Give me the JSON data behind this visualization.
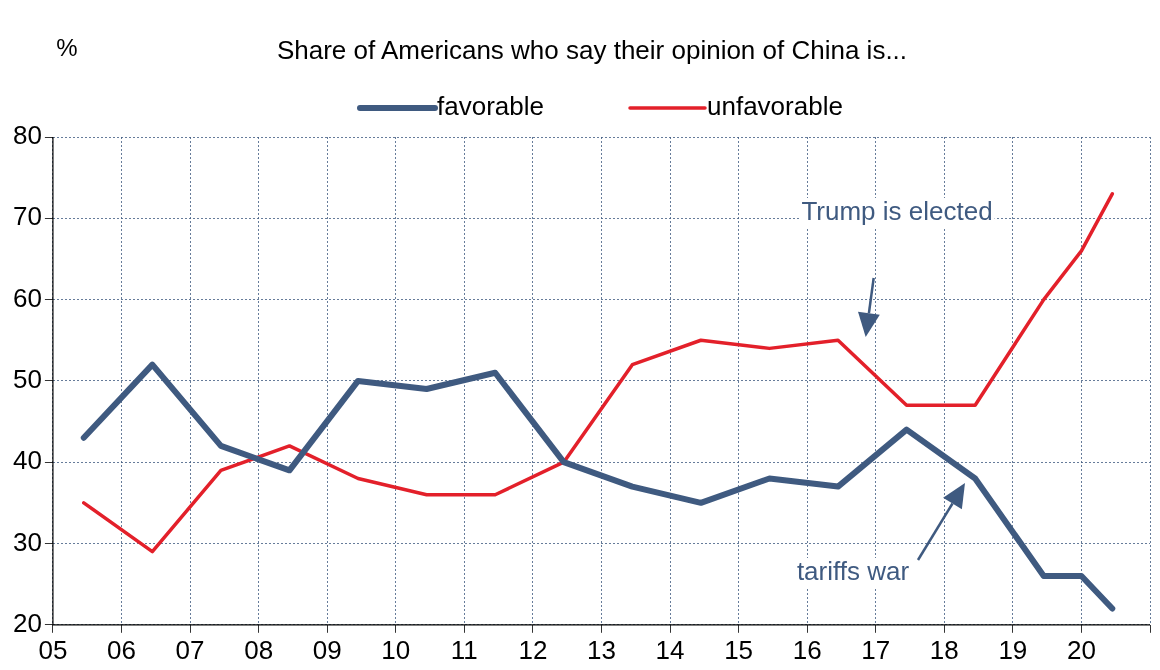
{
  "chart_data": {
    "type": "line",
    "title": "Share of Americans who say their opinion of China is...",
    "x": [
      5.45,
      6.45,
      7.45,
      8.45,
      9.45,
      10.45,
      11.45,
      12.45,
      13.45,
      14.45,
      15.45,
      16.45,
      17.45,
      18.45,
      19.45,
      20.0,
      20.45
    ],
    "series": [
      {
        "name": "favorable",
        "color": "#3f5a80",
        "values": [
          43,
          52,
          42,
          39,
          50,
          49,
          51,
          40,
          37,
          35,
          38,
          37,
          44,
          38,
          26,
          26,
          22
        ]
      },
      {
        "name": "unfavorable",
        "color": "#e3202a",
        "values": [
          35,
          29,
          39,
          42,
          38,
          36,
          36,
          40,
          52,
          55,
          54,
          55,
          47,
          47,
          60,
          66,
          73
        ]
      }
    ],
    "xlim": [
      5,
      21
    ],
    "xticks": [
      {
        "value": 5,
        "label": "05"
      },
      {
        "value": 6,
        "label": "06"
      },
      {
        "value": 7,
        "label": "07"
      },
      {
        "value": 8,
        "label": "08"
      },
      {
        "value": 9,
        "label": "09"
      },
      10,
      11,
      12,
      13,
      14,
      15,
      16,
      17,
      18,
      19,
      20,
      {
        "value": 21,
        "label": null
      }
    ],
    "ylim": [
      20,
      80
    ],
    "yticks": [
      20,
      30,
      40,
      50,
      60,
      70,
      80
    ],
    "annotations": [
      "%",
      "Trump is elected",
      "tariffs war"
    ],
    "grid": true,
    "legend": "top",
    "marker": "none",
    "line_style": "solid"
  }
}
